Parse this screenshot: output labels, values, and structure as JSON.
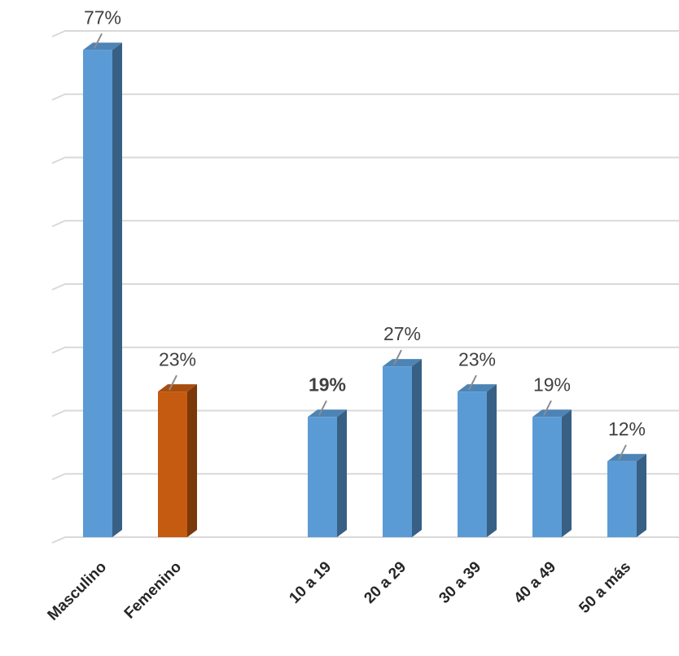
{
  "chart_data": {
    "type": "bar",
    "categories": [
      "Masculino",
      "Femenino",
      null,
      "10 a 19",
      "20 a 29",
      "30 a 39",
      "40 a 49",
      "50 a más"
    ],
    "values": [
      77,
      23,
      null,
      19,
      27,
      23,
      19,
      12
    ],
    "value_labels": [
      "77%",
      "23%",
      null,
      "19%",
      "27%",
      "23%",
      "19%",
      "12%"
    ],
    "colors": [
      "#5b9bd5",
      "#c55a11",
      null,
      "#5b9bd5",
      "#5b9bd5",
      "#5b9bd5",
      "#5b9bd5",
      "#5b9bd5"
    ],
    "ylim": [
      0,
      80
    ],
    "yticks": [
      0,
      10,
      20,
      30,
      40,
      50,
      60,
      70,
      80
    ],
    "grid": true
  }
}
